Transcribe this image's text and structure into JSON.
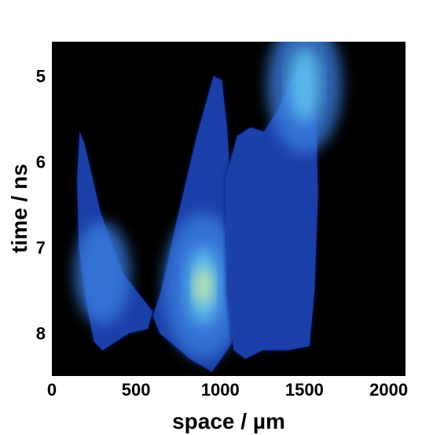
{
  "chart_data": {
    "type": "heatmap",
    "title": "",
    "xlabel": "space / µm",
    "ylabel": "time / ns",
    "xlim": [
      0,
      2100
    ],
    "ylim": [
      8.5,
      4.6
    ],
    "y_axis_inverted": true,
    "x_ticks": [
      0,
      500,
      1000,
      1500,
      2000
    ],
    "x_tick_labels": [
      "0",
      "500",
      "1000",
      "1500",
      "2000"
    ],
    "y_ticks": [
      5,
      6,
      7,
      8
    ],
    "y_tick_labels": [
      "5",
      "6",
      "7",
      "8"
    ],
    "background_color": "#000000",
    "colormap": [
      "#000000",
      "#0d1b6e",
      "#1f46b4",
      "#3a7ee0",
      "#5ec3ee",
      "#d8f2a0"
    ],
    "regions": [
      {
        "name": "left plume",
        "outline": [
          [
            165,
            5.65
          ],
          [
            195,
            5.8
          ],
          [
            290,
            6.6
          ],
          [
            420,
            7.3
          ],
          [
            520,
            7.55
          ],
          [
            600,
            7.75
          ],
          [
            570,
            7.95
          ],
          [
            460,
            8.0
          ],
          [
            300,
            8.2
          ],
          [
            250,
            8.1
          ],
          [
            200,
            7.6
          ],
          [
            160,
            7.0
          ],
          [
            150,
            6.2
          ]
        ],
        "peak": [
          300,
          7.3
        ],
        "peak_intensity": 0.45
      },
      {
        "name": "central plume",
        "outline": [
          [
            600,
            7.8
          ],
          [
            650,
            7.5
          ],
          [
            740,
            6.7
          ],
          [
            860,
            5.7
          ],
          [
            960,
            5.0
          ],
          [
            1010,
            5.05
          ],
          [
            1040,
            5.6
          ],
          [
            1080,
            6.8
          ],
          [
            1110,
            7.7
          ],
          [
            1100,
            8.0
          ],
          [
            1040,
            8.2
          ],
          [
            950,
            8.45
          ],
          [
            820,
            8.3
          ],
          [
            700,
            8.1
          ],
          [
            640,
            8.0
          ]
        ],
        "peak": [
          900,
          7.45
        ],
        "peak_intensity": 0.95
      },
      {
        "name": "right plume",
        "outline": [
          [
            1030,
            6.2
          ],
          [
            1100,
            5.7
          ],
          [
            1180,
            5.6
          ],
          [
            1260,
            5.65
          ],
          [
            1340,
            5.4
          ],
          [
            1430,
            5.0
          ],
          [
            1480,
            4.88
          ],
          [
            1530,
            4.95
          ],
          [
            1570,
            5.5
          ],
          [
            1580,
            6.4
          ],
          [
            1560,
            7.5
          ],
          [
            1530,
            8.15
          ],
          [
            1400,
            8.2
          ],
          [
            1250,
            8.2
          ],
          [
            1150,
            8.3
          ],
          [
            1080,
            8.2
          ],
          [
            1040,
            7.5
          ]
        ],
        "peak": [
          1500,
          5.1
        ],
        "peak_intensity": 0.85
      }
    ]
  }
}
